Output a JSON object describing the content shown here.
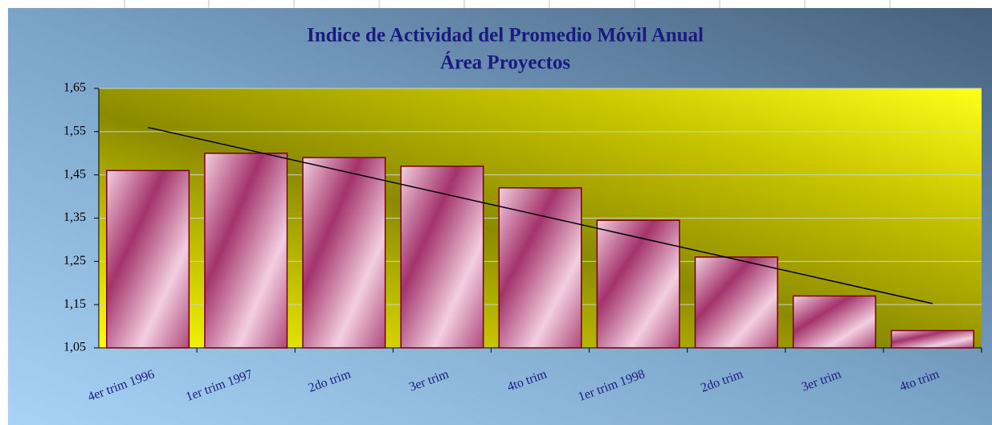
{
  "chart_data": {
    "type": "bar",
    "title": "Indice de Actividad del Promedio Móvil Anual",
    "subtitle": "Área Proyectos",
    "categories": [
      "4er trim 1996",
      "1er trim 1997",
      "2do trim",
      "3er trim",
      "4to trim",
      "1er trim 1998",
      "2do trim",
      "3er trim",
      "4to trim"
    ],
    "values": [
      1.46,
      1.5,
      1.49,
      1.47,
      1.42,
      1.345,
      1.26,
      1.17,
      1.09
    ],
    "color": "#a3336b",
    "ylim": [
      1.05,
      1.65
    ],
    "yticks": [
      {
        "value": 1.05,
        "label": "1,05"
      },
      {
        "value": 1.15,
        "label": "1,15"
      },
      {
        "value": 1.25,
        "label": "1,25"
      },
      {
        "value": 1.35,
        "label": "1,35"
      },
      {
        "value": 1.45,
        "label": "1,45"
      },
      {
        "value": 1.55,
        "label": "1,55"
      },
      {
        "value": 1.65,
        "label": "1,65"
      }
    ],
    "grid": true,
    "trendline": "linear"
  }
}
